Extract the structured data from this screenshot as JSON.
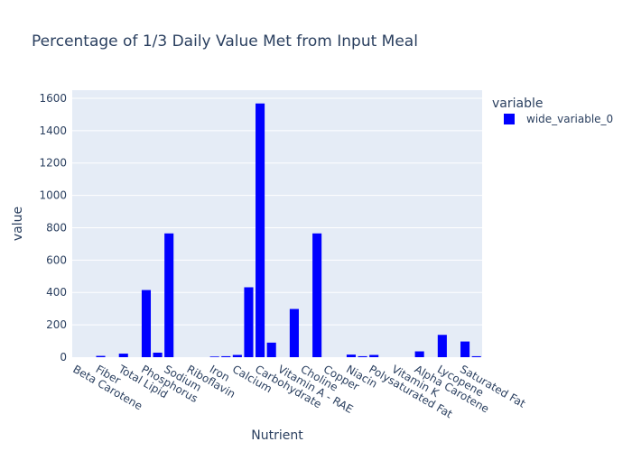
{
  "chart_data": {
    "type": "bar",
    "title": "Percentage of 1/3 Daily Value Met from Input Meal",
    "xlabel": "Nutrient",
    "ylabel": "value",
    "ylim": [
      0,
      1650
    ],
    "yticks": [
      0,
      200,
      400,
      600,
      800,
      1000,
      1200,
      1400,
      1600
    ],
    "grid": true,
    "legend_title": "variable",
    "legend_position": "top-right",
    "colors": {
      "bar": "#0000ff",
      "plot_bg": "#e5ecf6",
      "grid": "#ffffff",
      "text": "#2a3f5f"
    },
    "categories": [
      "Beta Carotene",
      "",
      "Fiber",
      "",
      "Total Lipid",
      "",
      "Phosphorus",
      "",
      "Sodium",
      "",
      "Riboflavin",
      "",
      "Iron",
      "",
      "Calcium",
      "",
      "Carbohydrate",
      "",
      "Vitamin A - RAE",
      "",
      "Choline",
      "",
      "Copper",
      "",
      "Niacin",
      "",
      "Polysaturated Fat",
      "",
      "Vitamin K",
      "",
      "Alpha Carotene",
      "",
      "Lycopene",
      "",
      "Saturated Fat",
      ""
    ],
    "series": [
      {
        "name": "wide_variable_0",
        "values": [
          0,
          0,
          8,
          0,
          22,
          0,
          415,
          28,
          765,
          0,
          0,
          0,
          4,
          6,
          14,
          432,
          1568,
          90,
          0,
          298,
          0,
          765,
          0,
          0,
          16,
          6,
          14,
          0,
          0,
          0,
          36,
          0,
          138,
          0,
          97,
          6
        ]
      }
    ]
  }
}
